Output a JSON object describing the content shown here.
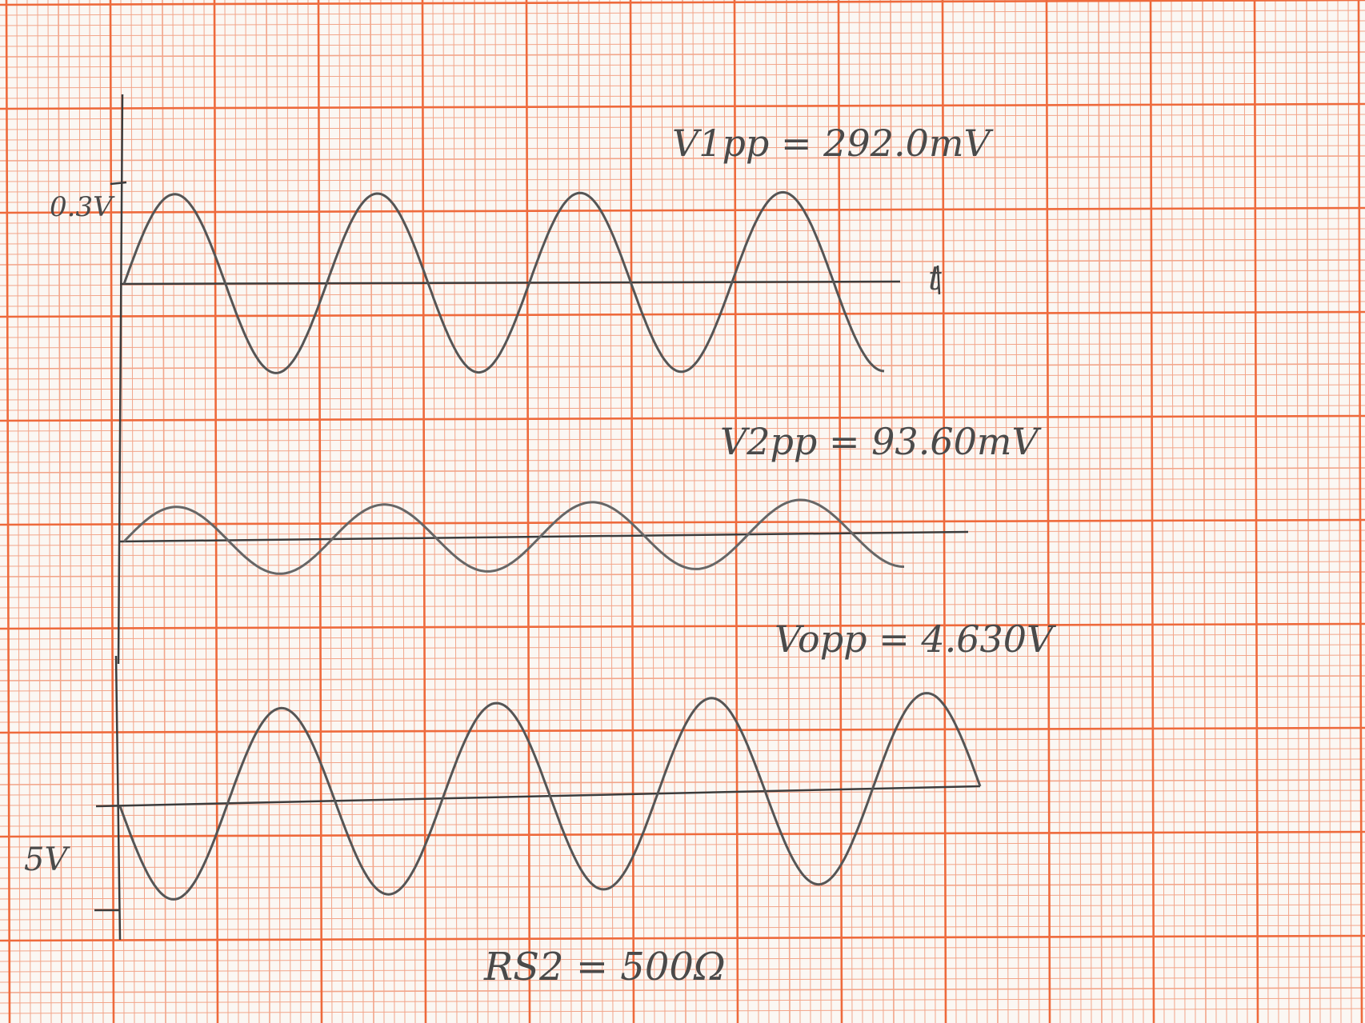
{
  "paper": {
    "background": "#fbf7f3",
    "grid_minor_color": "#f2a58a",
    "grid_major_color": "#ee6a3c",
    "pencil_color": "#555555"
  },
  "annotations": {
    "v1pp": "V1pp = 292.0mV",
    "v2pp": "V2pp = 93.60mV",
    "vopp": "Vopp = 4.630V",
    "scale_top": "0.3V",
    "scale_bottom": "5V",
    "axis_t": "t",
    "resistor": "RS2 = 500Ω"
  },
  "waveforms": [
    {
      "name": "v1",
      "cycles": 3.75,
      "relative_amplitude": 1.0
    },
    {
      "name": "v2",
      "cycles": 3.75,
      "relative_amplitude": 0.33
    },
    {
      "name": "vo",
      "cycles": 4.0,
      "relative_amplitude": 1.0,
      "inverted": true
    }
  ]
}
